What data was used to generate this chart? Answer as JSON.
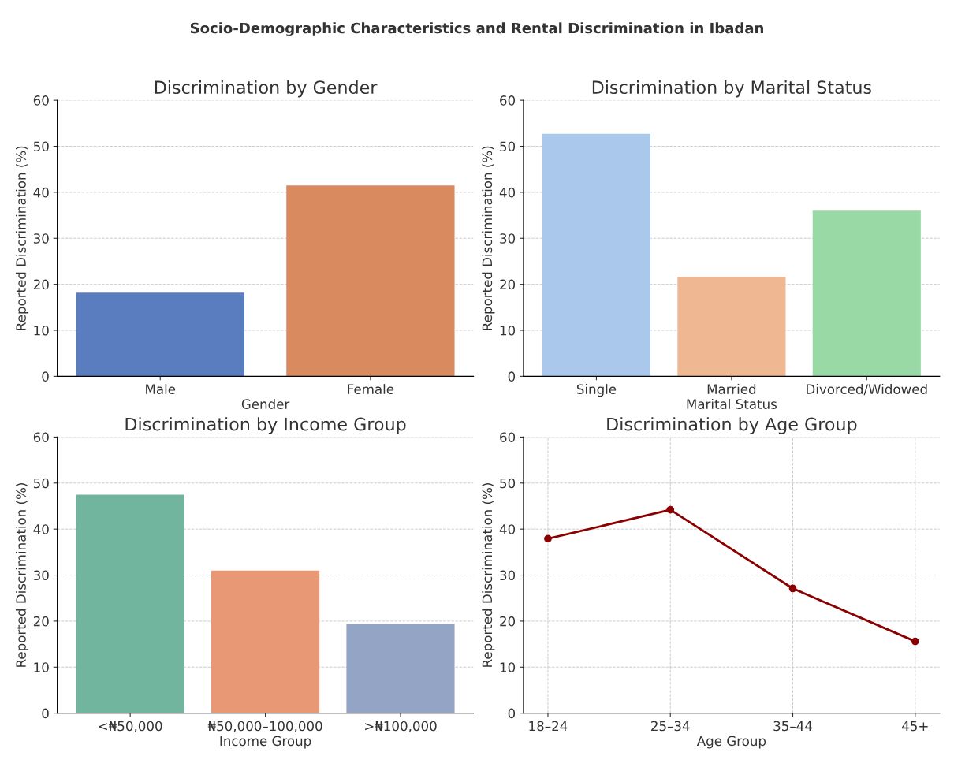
{
  "chart_data": [
    {
      "type": "bar",
      "title": "Discrimination by Gender",
      "annotations": [
        "Socio-Demographic Characteristics and Rental Discrimination in Ibadan"
      ],
      "xlabel": "Gender",
      "ylabel": "Reported Discrimination (%)",
      "categories": [
        "Male",
        "Female"
      ],
      "values": [
        18.2,
        41.5
      ],
      "colors": [
        "#5a7dc0",
        "#d98a5e"
      ],
      "ylim": [
        0,
        60
      ],
      "yticks": [
        0,
        10,
        20,
        30,
        40,
        50,
        60
      ],
      "grid": "y"
    },
    {
      "type": "bar",
      "title": "Discrimination by Marital Status",
      "xlabel": "Marital Status",
      "ylabel": "Reported Discrimination (%)",
      "categories": [
        "Single",
        "Married",
        "Divorced/Widowed"
      ],
      "values": [
        52.7,
        21.6,
        36.0
      ],
      "colors": [
        "#a9c8eb",
        "#f0b892",
        "#98d9a6"
      ],
      "ylim": [
        0,
        60
      ],
      "yticks": [
        0,
        10,
        20,
        30,
        40,
        50,
        60
      ],
      "grid": "y"
    },
    {
      "type": "bar",
      "title": "Discrimination by Income Group",
      "xlabel": "Income Group",
      "ylabel": "Reported Discrimination (%)",
      "categories": [
        "<₦50,000",
        "₦50,000–100,000",
        ">₦100,000"
      ],
      "values": [
        47.5,
        31.0,
        19.4
      ],
      "colors": [
        "#72b59f",
        "#e99875",
        "#94a4c4"
      ],
      "ylim": [
        0,
        60
      ],
      "yticks": [
        0,
        10,
        20,
        30,
        40,
        50,
        60
      ],
      "grid": "y"
    },
    {
      "type": "line",
      "title": "Discrimination by Age Group",
      "xlabel": "Age Group",
      "ylabel": "Reported Discrimination (%)",
      "categories": [
        "18–24",
        "25–34",
        "35–44",
        "45+"
      ],
      "values": [
        37.9,
        44.2,
        27.1,
        15.6
      ],
      "color": "#8b0000",
      "marker": "circle",
      "line_style": "solid",
      "ylim": [
        0,
        60
      ],
      "yticks": [
        0,
        10,
        20,
        30,
        40,
        50,
        60
      ],
      "grid": true
    }
  ]
}
